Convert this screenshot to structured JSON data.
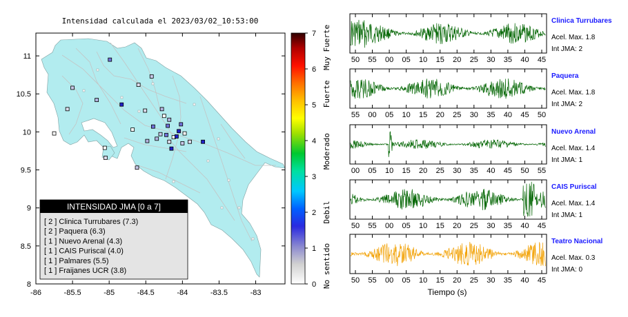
{
  "map_panel": {
    "title": "Intensidad calculada el 2023/03/02_10:53:00",
    "x_ticks": [
      "-86",
      "-85.5",
      "-85",
      "-84.5",
      "-84",
      "-83.5",
      "-83"
    ],
    "y_ticks": [
      "11",
      "10.5",
      "10",
      "9.5",
      "9",
      "8.5",
      "8"
    ],
    "land_color": "#b2ecef",
    "legend": {
      "header": "INTENSIDAD JMA [0 a 7]",
      "rows": [
        "[ 2 ]  Clinica Turrubares (7.3)",
        "[ 2 ]  Paquera (6.3)",
        "[ 1 ]  Nuevo Arenal (4.3)",
        "[ 1 ]  CAIS Puriscal (4.0)",
        "[ 1 ]  Palmares (5.5)",
        "[ 1 ]  Fraijanes UCR (3.8)"
      ]
    },
    "colorbar": {
      "ticks": [
        "0",
        "1",
        "2",
        "3",
        "4",
        "5",
        "6",
        "7"
      ],
      "class_labels": [
        "No sentido",
        "Debil",
        "Moderado",
        "Fuerte",
        "Muy Fuerte"
      ]
    }
  },
  "waveforms": {
    "xlabel": "Tiempo (s)",
    "traces": [
      {
        "station": "Clinica Turrubares",
        "accel": "Acel. Max. 1.8",
        "jma": "Int JMA: 2",
        "color": "#006400",
        "ticks": [
          "50",
          "55",
          "00",
          "05",
          "10",
          "15",
          "20",
          "25",
          "30",
          "35",
          "40",
          "45"
        ]
      },
      {
        "station": "Paquera",
        "accel": "Acel. Max. 1.8",
        "jma": "Int JMA: 2",
        "color": "#006400",
        "ticks": [
          "55",
          "00",
          "05",
          "10",
          "15",
          "20",
          "25",
          "30",
          "35",
          "40",
          "45",
          "50"
        ]
      },
      {
        "station": "Nuevo Arenal",
        "accel": "Acel. Max. 1.4",
        "jma": "Int JMA: 1",
        "color": "#006400",
        "ticks": [
          "00",
          "05",
          "10",
          "15",
          "20",
          "25",
          "30",
          "35",
          "40",
          "45",
          "50",
          "55"
        ]
      },
      {
        "station": "CAIS Puriscal",
        "accel": "Acel. Max. 1.4",
        "jma": "Int JMA: 1",
        "color": "#006400",
        "ticks": [
          "50",
          "55",
          "00",
          "05",
          "10",
          "15",
          "20",
          "25",
          "30",
          "35",
          "40",
          "45"
        ]
      },
      {
        "station": "Teatro Nacional",
        "accel": "Acel. Max. 0.3",
        "jma": "Int JMA: 0",
        "color": "#f2a000",
        "ticks": [
          "50",
          "55",
          "00",
          "05",
          "10",
          "15",
          "20",
          "25",
          "30",
          "35",
          "40",
          "45"
        ]
      }
    ]
  },
  "chart_data": [
    {
      "type": "scatter",
      "xlim": [
        -86,
        -82.6
      ],
      "ylim": [
        8,
        11.3
      ],
      "legend_placement": "bottom-left",
      "grid": false,
      "stations_estimated": [
        {
          "lon": -85.75,
          "lat": 9.98
        },
        {
          "lon": -85.57,
          "lat": 10.3
        },
        {
          "lon": -85.5,
          "lat": 10.58
        },
        {
          "lon": -85.17,
          "lat": 10.42
        },
        {
          "lon": -84.99,
          "lat": 10.95
        },
        {
          "lon": -84.83,
          "lat": 10.36
        },
        {
          "lon": -84.68,
          "lat": 10.03
        },
        {
          "lon": -84.51,
          "lat": 10.28
        },
        {
          "lon": -84.42,
          "lat": 10.73
        },
        {
          "lon": -84.28,
          "lat": 10.3
        },
        {
          "lon": -84.2,
          "lat": 10.08
        },
        {
          "lon": -84.05,
          "lat": 10.01
        },
        {
          "lon": -84.12,
          "lat": 9.93
        },
        {
          "lon": -84.18,
          "lat": 9.87
        },
        {
          "lon": -84.3,
          "lat": 9.97
        },
        {
          "lon": -84.35,
          "lat": 9.91
        },
        {
          "lon": -84.22,
          "lat": 9.96
        },
        {
          "lon": -84.08,
          "lat": 9.94
        },
        {
          "lon": -83.97,
          "lat": 9.98
        },
        {
          "lon": -83.9,
          "lat": 9.87
        },
        {
          "lon": -84.0,
          "lat": 9.85
        },
        {
          "lon": -84.48,
          "lat": 9.88
        },
        {
          "lon": -84.4,
          "lat": 10.07
        },
        {
          "lon": -84.15,
          "lat": 9.78
        },
        {
          "lon": -85.06,
          "lat": 9.79
        },
        {
          "lon": -85.05,
          "lat": 9.66
        },
        {
          "lon": -84.62,
          "lat": 9.53
        },
        {
          "lon": -84.18,
          "lat": 10.16
        },
        {
          "lon": -84.02,
          "lat": 10.1
        },
        {
          "lon": -83.72,
          "lat": 9.87
        },
        {
          "lon": -84.25,
          "lat": 10.21
        },
        {
          "lon": -84.6,
          "lat": 10.62
        }
      ]
    },
    {
      "type": "line",
      "x_unit": "s",
      "xlabel": "Tiempo (s)",
      "series": [
        {
          "name": "Clinica Turrubares",
          "peak_accel": 1.8,
          "jma": 2
        },
        {
          "name": "Paquera",
          "peak_accel": 1.8,
          "jma": 2
        },
        {
          "name": "Nuevo Arenal",
          "peak_accel": 1.4,
          "jma": 1
        },
        {
          "name": "CAIS Puriscal",
          "peak_accel": 1.4,
          "jma": 1
        },
        {
          "name": "Teatro Nacional",
          "peak_accel": 0.3,
          "jma": 0
        }
      ]
    }
  ]
}
